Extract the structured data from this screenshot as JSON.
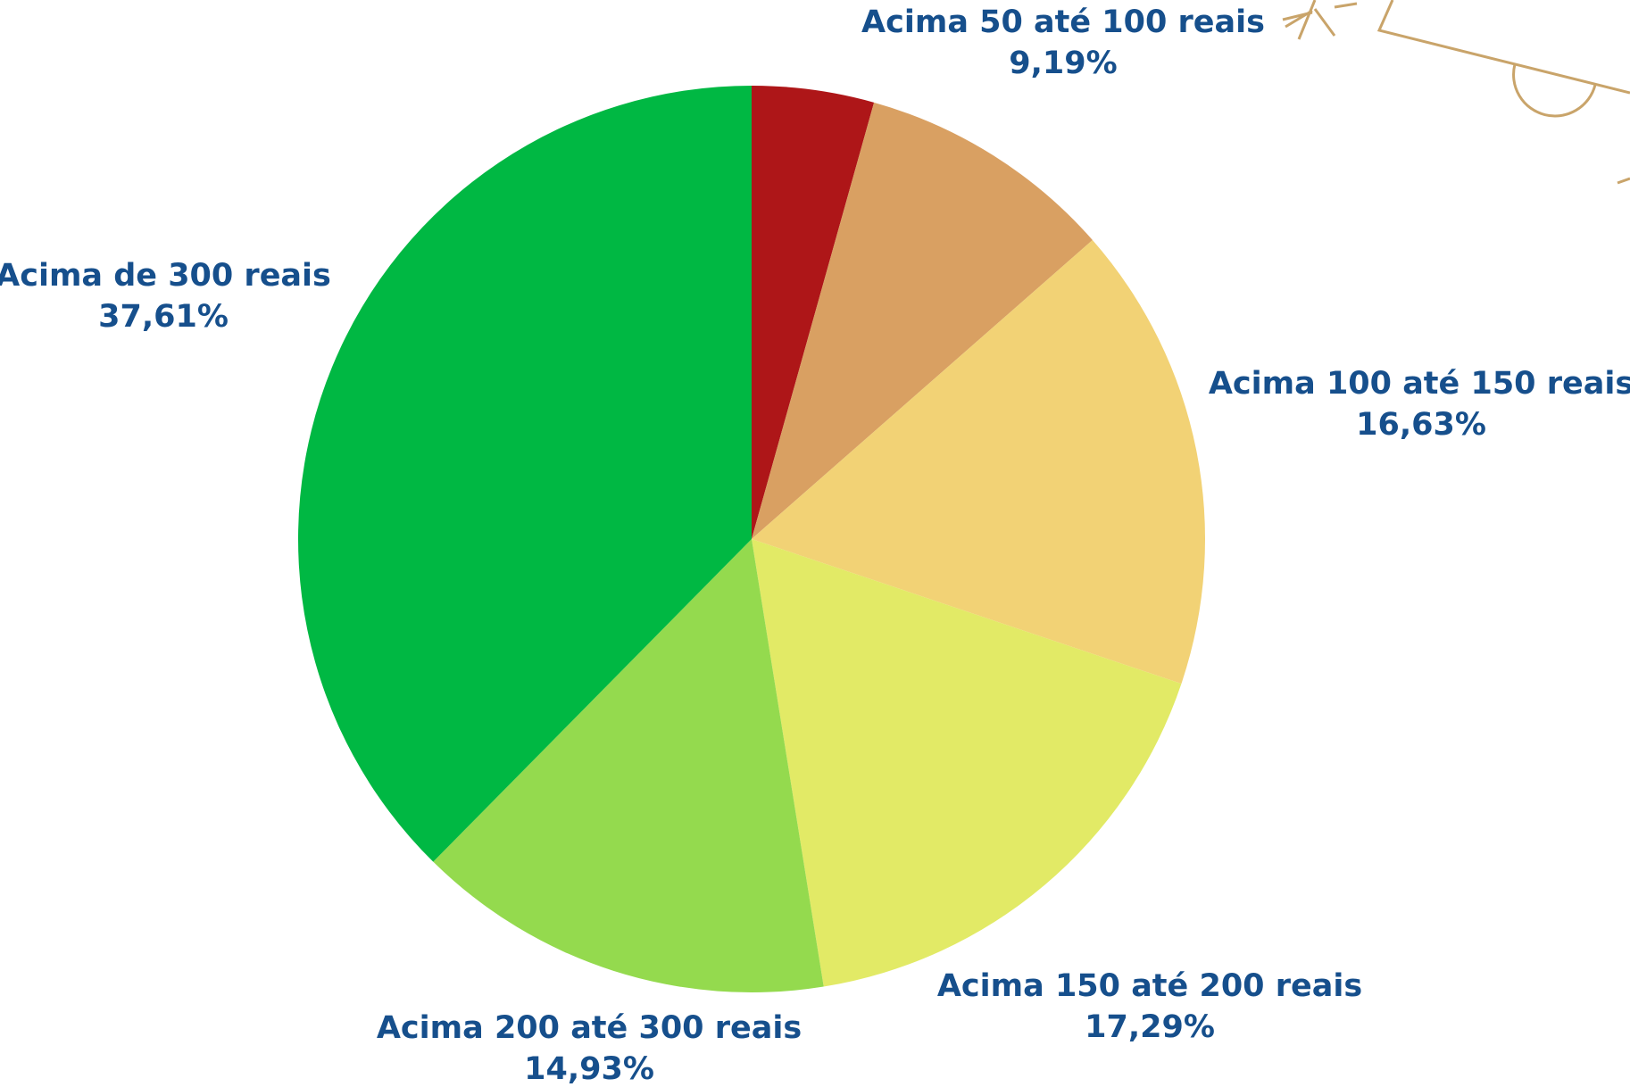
{
  "chart_data": {
    "type": "pie",
    "categories": [
      null,
      "Acima 50 até 100 reais",
      "Acima 100 até 150 reais",
      "Acima 150 até 200 reais",
      "Acima 200 até 300 reais",
      "Acima de 300 reais"
    ],
    "values": [
      4.35,
      9.19,
      16.63,
      17.29,
      14.93,
      37.61
    ],
    "value_labels": [
      null,
      "9,19%",
      "16,63%",
      "17,29%",
      "14,93%",
      "37,61%"
    ],
    "colors": [
      "#ae1618",
      "#d9a062",
      "#f2d275",
      "#e2ea66",
      "#94da4e",
      "#00b843"
    ]
  }
}
